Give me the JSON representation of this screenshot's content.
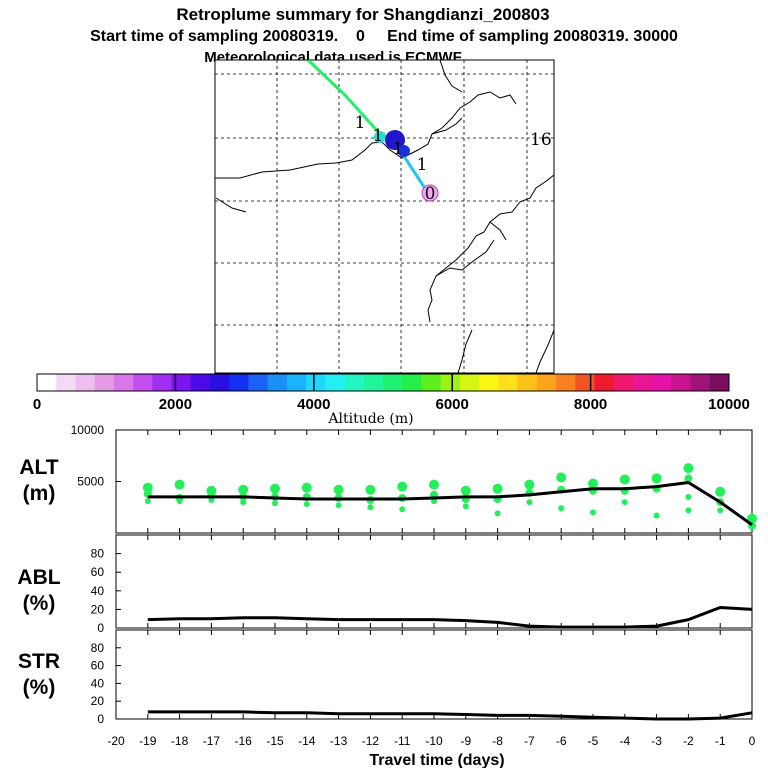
{
  "header": {
    "title": "Retroplume summary for Shangdianzi_200803",
    "line2": "Start time of sampling 20080319.    0     End time of sampling 20080319. 30000",
    "line3": "Meteorological data used is ECMWF"
  },
  "map": {
    "labels": [
      {
        "text": "1",
        "color": "#000000"
      },
      {
        "text": "1",
        "color": "#000000"
      },
      {
        "text": "1",
        "color": "#000000"
      },
      {
        "text": "1",
        "color": "#000000"
      },
      {
        "text": "0",
        "color": "#000000"
      },
      {
        "text": "16",
        "color": "#000000"
      }
    ]
  },
  "colorbar": {
    "colors": [
      "#ffffff",
      "#f5d9f5",
      "#eebfee",
      "#e59be5",
      "#d976e9",
      "#c34ff0",
      "#a22ef2",
      "#7c14f0",
      "#4c0ae6",
      "#2a10e0",
      "#1430f0",
      "#1a62f5",
      "#1a8ff8",
      "#19b4fb",
      "#1fd6fd",
      "#25eef2",
      "#22f4c4",
      "#20f59c",
      "#1ef374",
      "#22ef4a",
      "#5bef1d",
      "#9cf214",
      "#d6f512",
      "#fbf514",
      "#fde018",
      "#fcc21a",
      "#fca31c",
      "#fa7f1e",
      "#f45424",
      "#ee1a2e",
      "#f0186e",
      "#ec1595",
      "#e512a9",
      "#c8138f",
      "#a0147a",
      "#7a0e60"
    ],
    "tick_labels": [
      "0",
      "2000",
      "4000",
      "6000",
      "8000",
      "10000"
    ],
    "label": "Altitude (m)"
  },
  "panels": {
    "alt_label": [
      "ALT",
      "(m)"
    ],
    "abl_label": [
      "ABL",
      "(%)"
    ],
    "str_label": [
      "STR",
      "(%)"
    ],
    "xlabel": "Travel time (days)"
  },
  "chart_data": {
    "type": "line",
    "title": "Retroplume summary for Shangdianzi_200803",
    "xlabel": "Travel time (days)",
    "xlim": [
      -20,
      0
    ],
    "x_ticks": [
      "-20",
      "-19",
      "-18",
      "-17",
      "-16",
      "-15",
      "-14",
      "-13",
      "-12",
      "-11",
      "-10",
      "-9",
      "-8",
      "-7",
      "-6",
      "-5",
      "-4",
      "-3",
      "-2",
      "-1",
      "0"
    ],
    "x": [
      -19,
      -18,
      -17,
      -16,
      -15,
      -14,
      -13,
      -12,
      -11,
      -10,
      -9,
      -8,
      -7,
      -6,
      -5,
      -4,
      -3,
      -2,
      -1,
      0
    ],
    "alt": {
      "ylabel": "ALT (m)",
      "ylim": [
        0,
        10000
      ],
      "y_ticks": [
        "5000",
        "10000"
      ],
      "mean": [
        3500,
        3500,
        3500,
        3500,
        3400,
        3300,
        3300,
        3300,
        3300,
        3400,
        3500,
        3500,
        3700,
        4000,
        4300,
        4300,
        4500,
        4900,
        3000,
        800
      ],
      "clusters": [
        {
          "x": -19,
          "y": [
            4400,
            3800,
            3100
          ]
        },
        {
          "x": -18,
          "y": [
            4700,
            3400,
            3100
          ]
        },
        {
          "x": -17,
          "y": [
            4100,
            3600,
            3200
          ]
        },
        {
          "x": -16,
          "y": [
            4200,
            3500,
            3000
          ]
        },
        {
          "x": -15,
          "y": [
            4300,
            3500,
            2900
          ]
        },
        {
          "x": -14,
          "y": [
            4400,
            3500,
            2800
          ]
        },
        {
          "x": -13,
          "y": [
            4200,
            3400,
            2700
          ]
        },
        {
          "x": -12,
          "y": [
            4200,
            3200,
            2500
          ]
        },
        {
          "x": -11,
          "y": [
            4500,
            3400,
            2300
          ]
        },
        {
          "x": -10,
          "y": [
            4700,
            3700,
            3100
          ]
        },
        {
          "x": -9,
          "y": [
            4100,
            3300,
            2600
          ]
        },
        {
          "x": -8,
          "y": [
            4300,
            3300,
            1900
          ]
        },
        {
          "x": -7,
          "y": [
            4700,
            3900,
            3000
          ]
        },
        {
          "x": -6,
          "y": [
            5400,
            4200,
            2400
          ]
        },
        {
          "x": -5,
          "y": [
            4800,
            4100,
            2000
          ]
        },
        {
          "x": -4,
          "y": [
            5200,
            4100,
            3000
          ]
        },
        {
          "x": -3,
          "y": [
            5300,
            4300,
            1700
          ]
        },
        {
          "x": -2,
          "y": [
            6300,
            5300,
            3500,
            2200
          ]
        },
        {
          "x": -1,
          "y": [
            4000,
            3000,
            2200
          ]
        },
        {
          "x": 0,
          "y": [
            1400,
            700
          ]
        }
      ]
    },
    "abl": {
      "ylabel": "ABL (%)",
      "ylim": [
        0,
        100
      ],
      "y_ticks": [
        "0",
        "20",
        "40",
        "60",
        "80"
      ],
      "values": [
        9,
        10,
        10,
        11,
        11,
        10,
        9,
        9,
        9,
        9,
        8,
        6,
        2,
        1,
        1,
        1,
        2,
        9,
        22,
        20
      ]
    },
    "str": {
      "ylabel": "STR (%)",
      "ylim": [
        0,
        100
      ],
      "y_ticks": [
        "0",
        "20",
        "40",
        "60",
        "80"
      ],
      "values": [
        8,
        8,
        8,
        8,
        7,
        7,
        6,
        6,
        6,
        6,
        5,
        4,
        4,
        3,
        2,
        1,
        0,
        0,
        1,
        7
      ]
    }
  }
}
